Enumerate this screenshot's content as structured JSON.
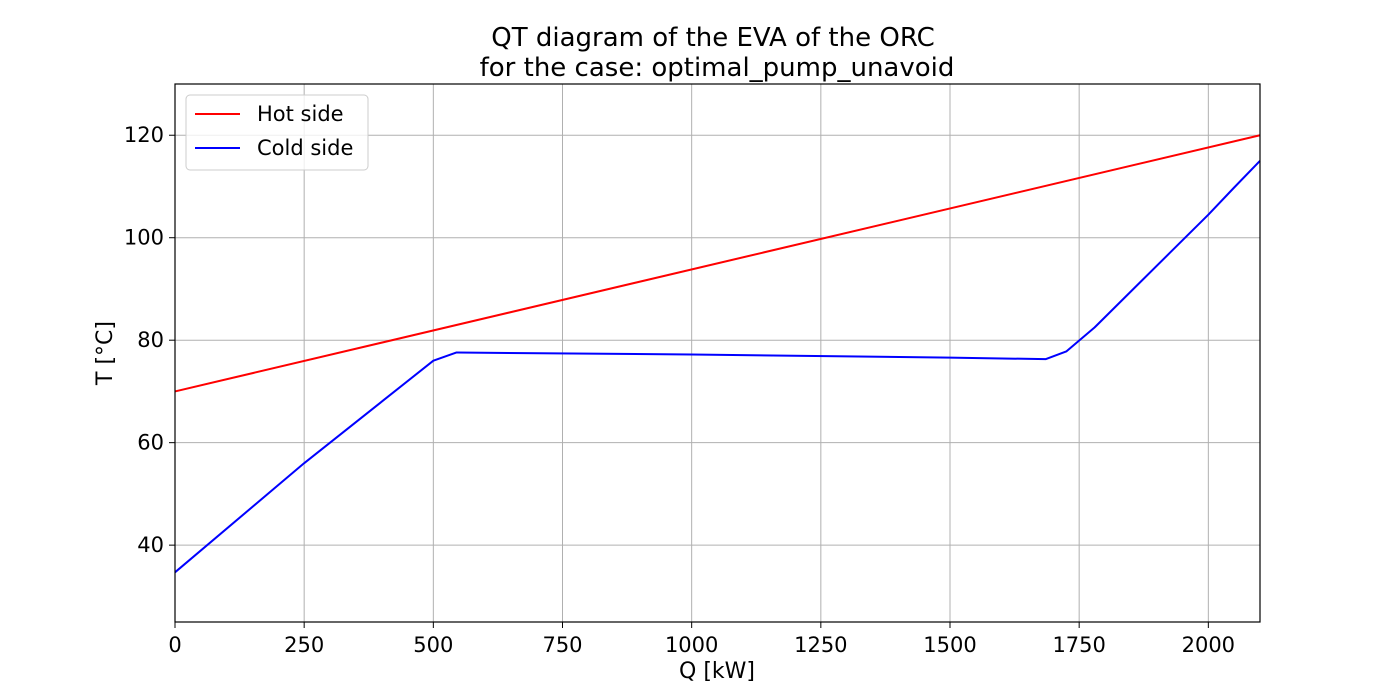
{
  "chart_data": {
    "type": "line",
    "title": [
      "QT diagram of the EVA of the ORC",
      "for the case: optimal_pump_unavoid"
    ],
    "xlabel": "Q [kW]",
    "ylabel": "T [°C]",
    "xlim": [
      0,
      2100
    ],
    "ylim": [
      25,
      130
    ],
    "x_ticks": [
      0,
      250,
      500,
      750,
      1000,
      1250,
      1500,
      1750,
      2000
    ],
    "y_ticks": [
      40,
      60,
      80,
      100,
      120
    ],
    "grid": true,
    "legend": {
      "placement": "upper-left"
    },
    "series": [
      {
        "name": "Hot side",
        "color": "#ff0000",
        "x": [
          0,
          2100
        ],
        "y": [
          70,
          120
        ]
      },
      {
        "name": "Cold side",
        "color": "#0000ff",
        "x": [
          0,
          250,
          500,
          545,
          1000,
          1500,
          1685,
          1725,
          1780,
          1850,
          1925,
          2000,
          2050,
          2100
        ],
        "y": [
          34.7,
          56,
          76,
          77.6,
          77.2,
          76.6,
          76.3,
          77.8,
          82.5,
          89.5,
          97,
          104.5,
          109.8,
          115
        ]
      }
    ]
  }
}
